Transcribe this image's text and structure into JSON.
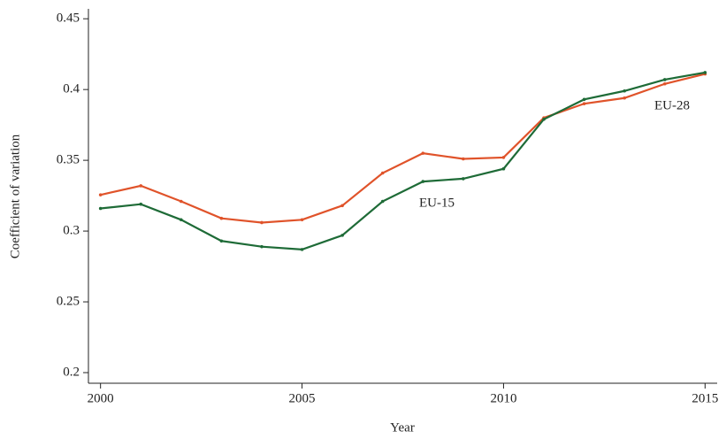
{
  "chart_data": {
    "type": "line",
    "x_label": "Year",
    "y_label": "Coefficient of variation",
    "x": [
      2000,
      2001,
      2002,
      2003,
      2004,
      2005,
      2006,
      2007,
      2008,
      2009,
      2010,
      2011,
      2012,
      2013,
      2014,
      2015
    ],
    "series": [
      {
        "name": "EU-28",
        "color": "#e0532a",
        "values": [
          0.3256,
          0.332,
          0.321,
          0.309,
          0.306,
          0.308,
          0.318,
          0.341,
          0.355,
          0.351,
          0.352,
          0.38,
          0.39,
          0.394,
          0.404,
          0.411
        ]
      },
      {
        "name": "EU-15",
        "color": "#1e6b37",
        "values": [
          0.316,
          0.319,
          0.308,
          0.293,
          0.289,
          0.287,
          0.297,
          0.321,
          0.335,
          0.337,
          0.344,
          0.379,
          0.393,
          0.399,
          0.407,
          0.412
        ]
      }
    ],
    "xlim": [
      1999.7,
      2015.3
    ],
    "xticks": [
      2000,
      2005,
      2010,
      2015
    ],
    "ylim": [
      0.1925,
      0.457
    ],
    "yticks": [
      0.2,
      0.25,
      0.3,
      0.35,
      0.4,
      0.45
    ]
  }
}
